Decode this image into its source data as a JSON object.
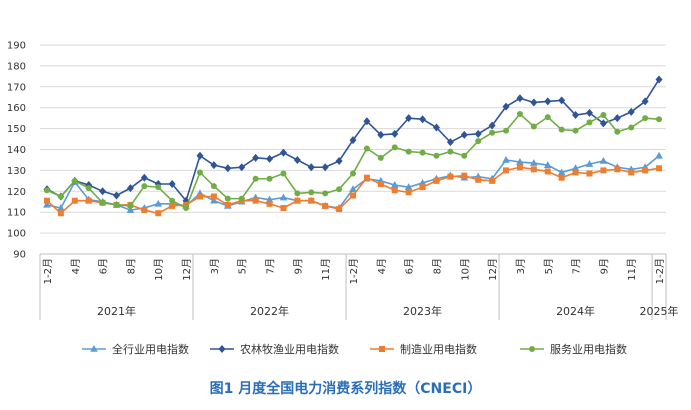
{
  "caption": "图1  月度全国电力消费系列指数（CNECI）",
  "chart_data": {
    "type": "line",
    "title": "",
    "ylim": [
      90,
      190
    ],
    "yticks": [
      "90",
      "100",
      "110",
      "120",
      "130",
      "140",
      "150",
      "160",
      "170",
      "180",
      "190"
    ],
    "grid": true,
    "legend_position": "bottom",
    "x": [
      "1-2月",
      "3月",
      "4月",
      "5月",
      "6月",
      "7月",
      "8月",
      "9月",
      "10月",
      "11月",
      "12月",
      "1-2月",
      "3月",
      "4月",
      "5月",
      "6月",
      "7月",
      "8月",
      "9月",
      "10月",
      "11月",
      "12月",
      "1-2月",
      "3月",
      "4月",
      "5月",
      "6月",
      "7月",
      "8月",
      "9月",
      "10月",
      "11月",
      "12月",
      "1-2月",
      "3月",
      "4月",
      "5月",
      "6月",
      "7月",
      "8月",
      "9月",
      "10月",
      "11月",
      "12月",
      "1-2月"
    ],
    "xtick_labels": [
      {
        "i": 0,
        "label": "1-2月"
      },
      {
        "i": 2,
        "label": "4月"
      },
      {
        "i": 4,
        "label": "6月"
      },
      {
        "i": 6,
        "label": "8月"
      },
      {
        "i": 8,
        "label": "10月"
      },
      {
        "i": 10,
        "label": "12月"
      },
      {
        "i": 12,
        "label": "3月"
      },
      {
        "i": 14,
        "label": "5月"
      },
      {
        "i": 16,
        "label": "7月"
      },
      {
        "i": 18,
        "label": "9月"
      },
      {
        "i": 20,
        "label": "11月"
      },
      {
        "i": 22,
        "label": "1-2月"
      },
      {
        "i": 24,
        "label": "4月"
      },
      {
        "i": 26,
        "label": "6月"
      },
      {
        "i": 28,
        "label": "8月"
      },
      {
        "i": 30,
        "label": "10月"
      },
      {
        "i": 32,
        "label": "12月"
      },
      {
        "i": 34,
        "label": "3月"
      },
      {
        "i": 36,
        "label": "5月"
      },
      {
        "i": 38,
        "label": "7月"
      },
      {
        "i": 40,
        "label": "9月"
      },
      {
        "i": 42,
        "label": "11月"
      },
      {
        "i": 44,
        "label": "1-2月"
      }
    ],
    "years": [
      {
        "label": "2021年",
        "start": 0,
        "end": 10
      },
      {
        "label": "2022年",
        "start": 11,
        "end": 21
      },
      {
        "label": "2023年",
        "start": 22,
        "end": 32
      },
      {
        "label": "2024年",
        "start": 33,
        "end": 43
      },
      {
        "label": "2025年",
        "start": 44,
        "end": 44
      }
    ],
    "series": [
      {
        "name": "全行业用电指数",
        "color": "#5b9bd5",
        "marker": "triangle",
        "values": [
          113.5,
          112,
          124.5,
          116,
          115,
          113.5,
          111,
          112,
          114,
          114,
          113,
          119,
          115.5,
          113,
          115,
          117,
          116,
          117,
          115.5,
          115.5,
          113,
          112,
          121,
          126,
          125,
          123,
          122,
          124,
          126,
          127.5,
          126.5,
          127,
          126,
          135,
          134,
          133.5,
          132.5,
          129,
          131,
          133,
          134.5,
          131.5,
          130.5,
          131.5,
          137
        ]
      },
      {
        "name": "农林牧渔业用电指数",
        "color": "#2f5597",
        "marker": "diamond",
        "values": [
          121,
          117.5,
          125,
          123,
          120,
          118,
          121.5,
          126.5,
          123.5,
          123.5,
          115.5,
          137,
          132.5,
          131,
          131.5,
          136,
          135.5,
          138.5,
          135,
          131.5,
          131.5,
          134.5,
          144.5,
          153.5,
          147,
          147.5,
          155,
          154.5,
          150.5,
          143.5,
          147,
          147.5,
          151.5,
          160.5,
          164.5,
          162.5,
          163,
          163.5,
          156.5,
          157.5,
          152.5,
          155,
          158,
          163,
          173.5
        ]
      },
      {
        "name": "制造业用电指数",
        "color": "#ed7d31",
        "marker": "square",
        "values": [
          115.5,
          109.5,
          115.5,
          115.5,
          114.5,
          113.5,
          113.5,
          111,
          109.5,
          113,
          113.5,
          117.5,
          117.5,
          113.5,
          115.5,
          115.5,
          114,
          112,
          115.5,
          115.5,
          113,
          111.5,
          118,
          126.5,
          123.5,
          120.5,
          119.5,
          122,
          125,
          127,
          127.5,
          125.5,
          125,
          130,
          131.5,
          130.5,
          129.5,
          126.5,
          129,
          128.5,
          130,
          130.5,
          129,
          130,
          131
        ]
      },
      {
        "name": "服务业用电指数",
        "color": "#70ad47",
        "marker": "circle",
        "values": [
          120.5,
          117.5,
          125,
          121.5,
          114.5,
          113.5,
          113,
          122.5,
          122,
          115.5,
          112,
          129,
          122.5,
          116.5,
          116.5,
          126,
          126,
          128.5,
          119,
          119.5,
          119,
          121,
          128.5,
          140.5,
          136,
          141,
          139,
          138.5,
          137,
          139,
          137,
          144,
          148,
          149,
          157,
          151,
          155.5,
          149.5,
          149,
          153,
          156.5,
          148.5,
          150.5,
          155,
          154.5
        ]
      }
    ]
  }
}
